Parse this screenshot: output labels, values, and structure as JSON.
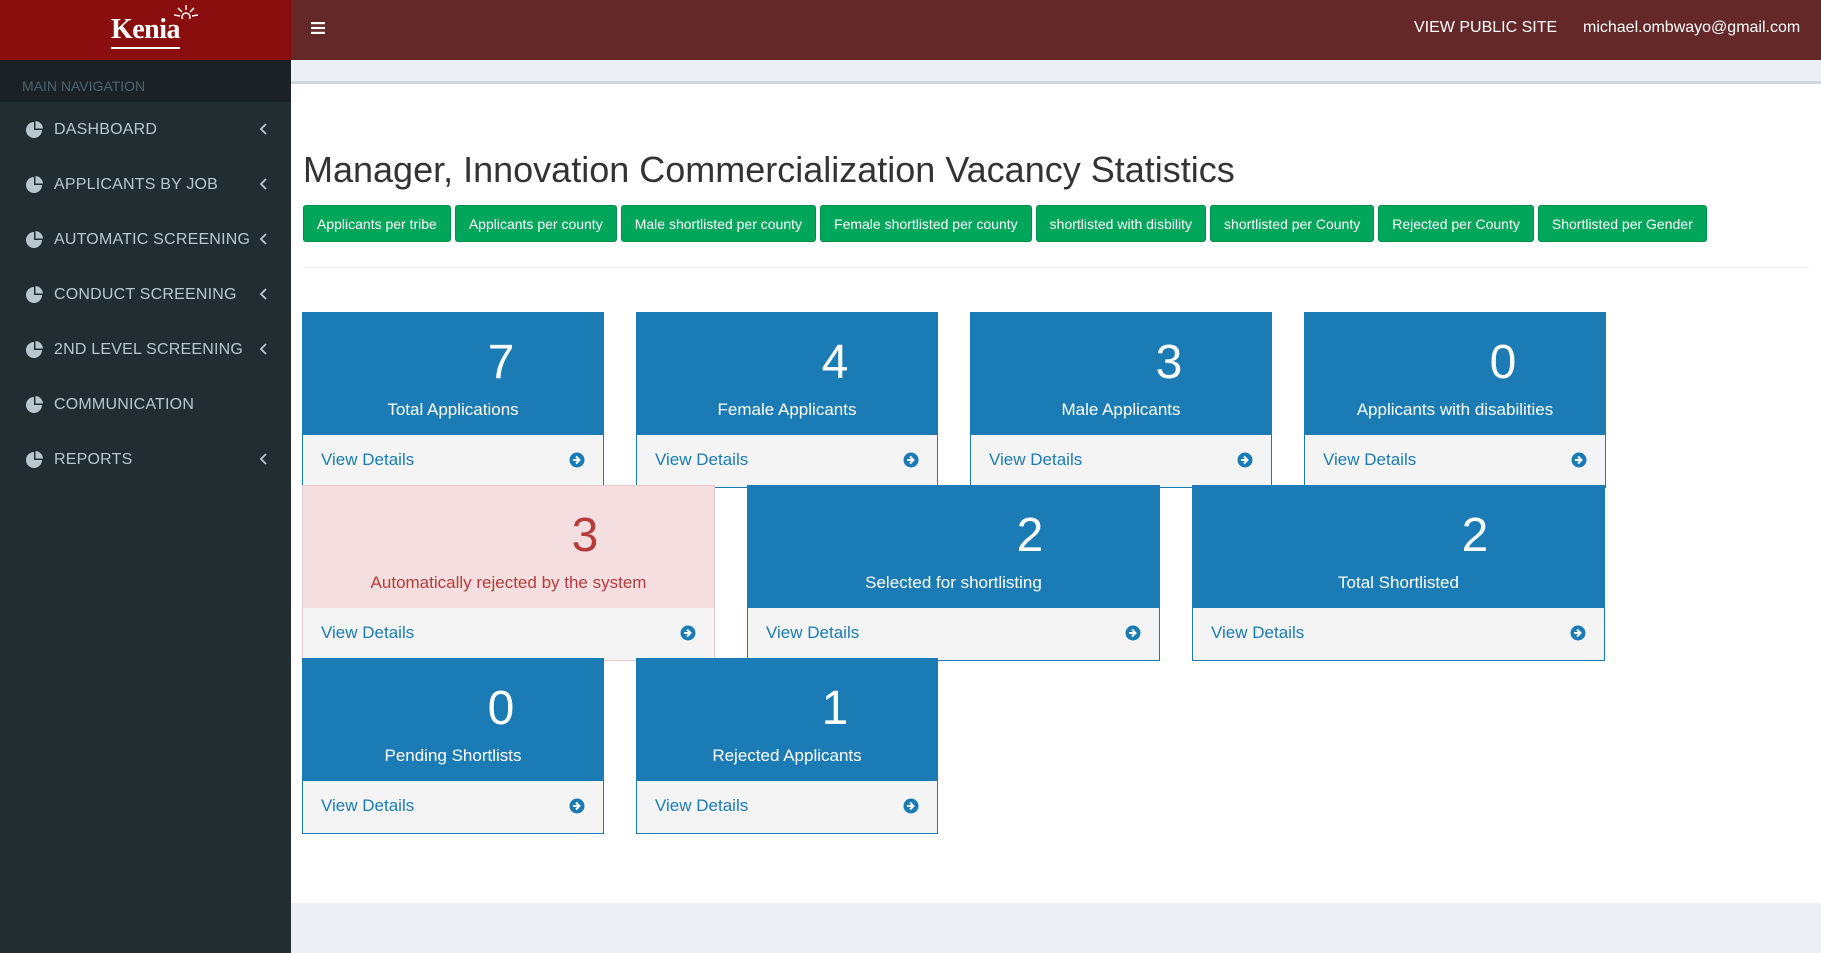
{
  "brand": {
    "logo_text": "Kenia"
  },
  "sidebar": {
    "header": "MAIN NAVIGATION",
    "items": [
      {
        "label": "DASHBOARD",
        "has_chevron": true
      },
      {
        "label": "APPLICANTS BY JOB",
        "has_chevron": true
      },
      {
        "label": "AUTOMATIC SCREENING",
        "has_chevron": true
      },
      {
        "label": "CONDUCT SCREENING",
        "has_chevron": true
      },
      {
        "label": "2ND LEVEL SCREENING",
        "has_chevron": true
      },
      {
        "label": "COMMUNICATION",
        "has_chevron": false
      },
      {
        "label": "REPORTS",
        "has_chevron": true
      }
    ]
  },
  "topbar": {
    "public_site": "VIEW PUBLIC SITE",
    "user_email": "michael.ombwayo@gmail.com"
  },
  "page": {
    "title": "Manager, Innovation Commercialization Vacancy Statistics",
    "buttons": [
      "Applicants per tribe",
      "Applicants per county",
      "Male shortlisted per county",
      "Female shortlisted per county",
      "shortlisted with disbility",
      "shortlisted per County",
      "Rejected per County",
      "Shortlisted per Gender"
    ]
  },
  "stats": [
    {
      "value": "7",
      "label": "Total Applications",
      "link": "View Details"
    },
    {
      "value": "4",
      "label": "Female Applicants",
      "link": "View Details"
    },
    {
      "value": "3",
      "label": "Male Applicants",
      "link": "View Details"
    },
    {
      "value": "0",
      "label": "Applicants with disabilities",
      "link": "View Details"
    },
    {
      "value": "3",
      "label": "Automatically rejected by the system",
      "link": "View Details"
    },
    {
      "value": "2",
      "label": "Selected for shortlisting",
      "link": "View Details"
    },
    {
      "value": "2",
      "label": "Total Shortlisted",
      "link": "View Details"
    },
    {
      "value": "0",
      "label": "Pending Shortlists",
      "link": "View Details"
    },
    {
      "value": "1",
      "label": "Rejected Applicants",
      "link": "View Details"
    }
  ],
  "colors": {
    "sidebar_bg": "#222d32",
    "logo_bg": "#8b0e0e",
    "topbar_bg": "#652828",
    "stat_blue": "#1a7bb5",
    "stat_red_bg": "#f5dedf",
    "stat_red_text": "#b63b3b",
    "button_green": "#00a65a"
  },
  "icons": {
    "nav": "pie-chart-icon",
    "menu": "hamburger-icon",
    "footer": "circle-arrow-right-icon"
  }
}
